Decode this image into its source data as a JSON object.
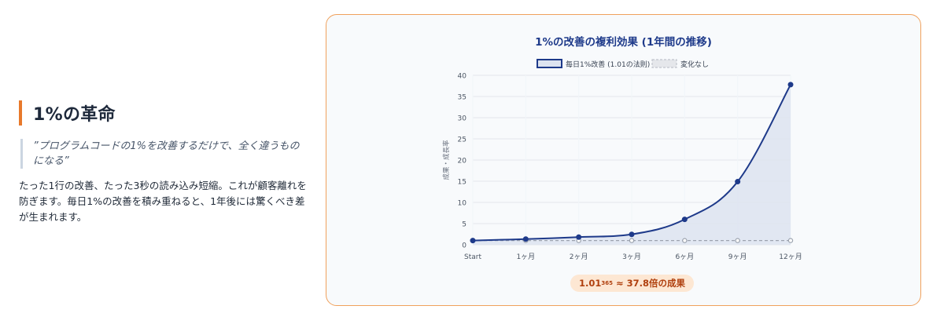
{
  "left": {
    "heading": "1%の革命",
    "quote": "”プログラムコードの1%を改善するだけで、全く違うものになる”",
    "body": "たった1行の改善、たった3秒の読み込み短縮。これが顧客離れを防ぎます。毎日1%の改善を積み重ねると、1年後には驚くべき差が生まれます。"
  },
  "chart_data": {
    "type": "line",
    "title": "1%の改善の複利効果 (1年間の推移)",
    "categories": [
      "Start",
      "1ヶ月",
      "2ヶ月",
      "3ヶ月",
      "6ヶ月",
      "9ヶ月",
      "12ヶ月"
    ],
    "ylabel": "成果・成長率",
    "xlabel": "",
    "ylim": [
      0,
      40
    ],
    "yticks": [
      0,
      5,
      10,
      15,
      20,
      25,
      30,
      35,
      40
    ],
    "grid": true,
    "legend_position": "top-center",
    "series": [
      {
        "name": "毎日1%改善 (1.01の法則)",
        "values": [
          1,
          1.35,
          1.81,
          2.45,
          6.0,
          14.9,
          37.8
        ],
        "color": "#1e3a8a",
        "fill": "#dde3f0"
      },
      {
        "name": "変化なし",
        "values": [
          1,
          1,
          1,
          1,
          1,
          1,
          1
        ],
        "color": "#9ca3af"
      }
    ]
  },
  "badge": {
    "base": "1.01",
    "exponent": "365",
    "rest": "≈ 37.8倍の成果"
  }
}
